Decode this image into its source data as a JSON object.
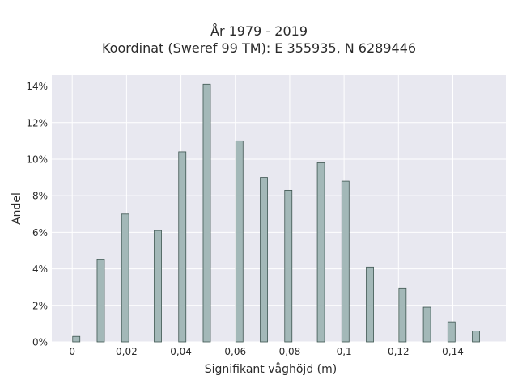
{
  "chart_data": {
    "type": "bar",
    "title": "År 1979 - 2019",
    "subtitle": "Koordinat (Sweref 99 TM): E 355935, N 6289446",
    "xlabel": "Signifikant våghöjd (m)",
    "ylabel": "Andel",
    "x_ticks": [
      0,
      0.02,
      0.04,
      0.06,
      0.08,
      0.1,
      0.12,
      0.14
    ],
    "x_tick_labels": [
      "0",
      "0,02",
      "0,04",
      "0,06",
      "0,08",
      "0,1",
      "0,12",
      "0,14"
    ],
    "y_ticks": [
      0,
      2,
      4,
      6,
      8,
      10,
      12,
      14
    ],
    "y_tick_labels": [
      "0%",
      "2%",
      "4%",
      "6%",
      "8%",
      "10%",
      "12%",
      "14%"
    ],
    "xlim": [
      -0.0075,
      0.1595
    ],
    "ylim": [
      0,
      14.6
    ],
    "grid": true,
    "bar_color": "#a3b8b8",
    "bar_edge_color": "#3d5550",
    "plot_bg": "#e8e8f0",
    "x": [
      0.0015,
      0.0105,
      0.0195,
      0.0315,
      0.0405,
      0.0495,
      0.0615,
      0.0705,
      0.0795,
      0.0915,
      0.1005,
      0.1095,
      0.1215,
      0.1305,
      0.1395,
      0.1485
    ],
    "values": [
      0.3,
      4.5,
      7.0,
      6.1,
      10.4,
      14.1,
      11.0,
      9.0,
      8.3,
      9.8,
      8.8,
      4.1,
      2.95,
      1.9,
      1.1,
      0.6
    ]
  }
}
